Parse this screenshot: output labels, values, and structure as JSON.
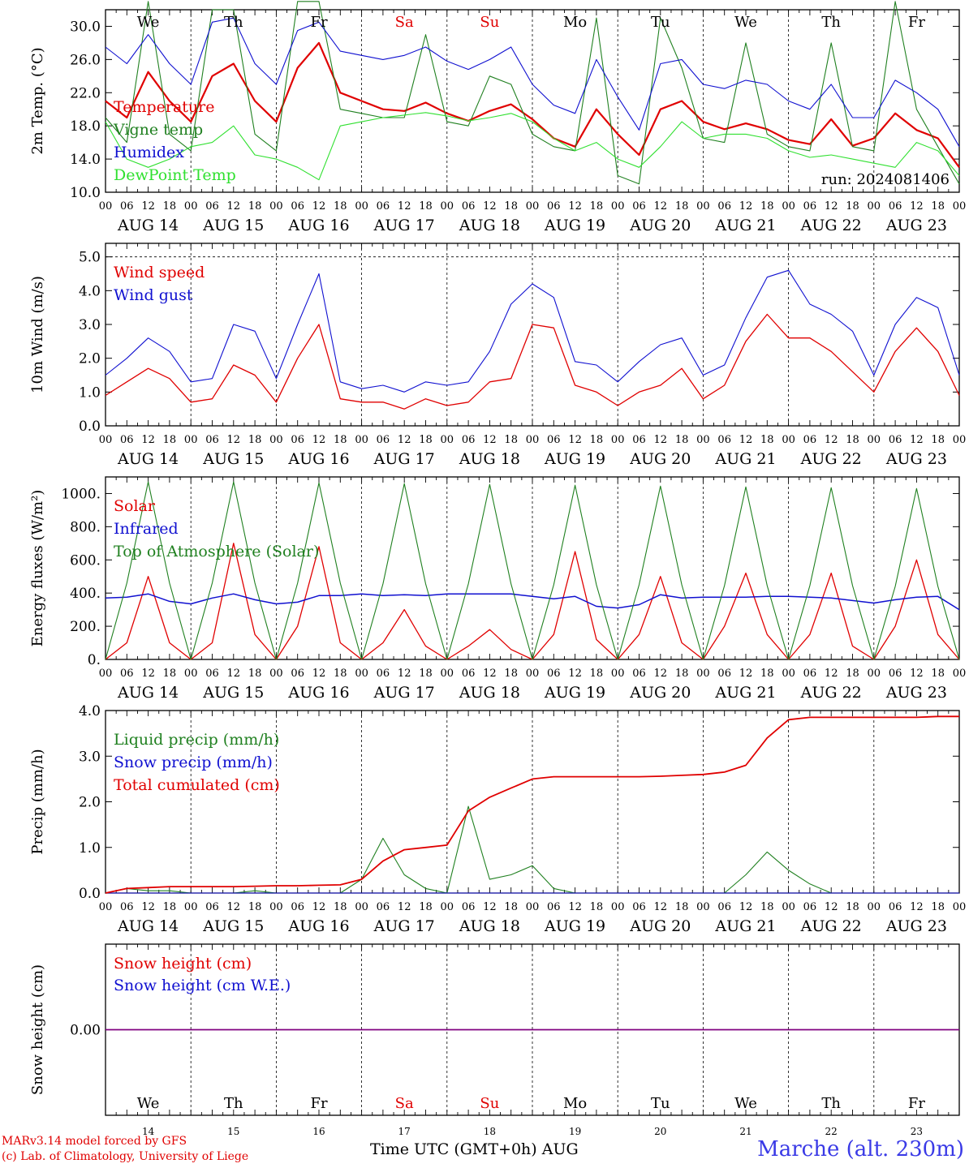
{
  "footer": {
    "model": "MARv3.14 model forced by GFS",
    "credit": "(c) Lab. of Climatology, University of Liege",
    "time_axis": "Time UTC (GMT+0h) AUG",
    "station": "Marche (alt. 230m)"
  },
  "colors": {
    "red": "#e00000",
    "dark_green": "#208020",
    "blue": "#1010d0",
    "light_green": "#30e030",
    "purple": "#800080",
    "weekend_red": "#e00000"
  },
  "days": {
    "weekdays": [
      "We",
      "Th",
      "Fr",
      "Sa",
      "Su",
      "Mo",
      "Tu",
      "We",
      "Th",
      "Fr"
    ],
    "weekend": [
      false,
      false,
      false,
      true,
      true,
      false,
      false,
      false,
      false,
      false
    ],
    "dates": [
      "AUG 14",
      "AUG 15",
      "AUG 16",
      "AUG 17",
      "AUG 18",
      "AUG 19",
      "AUG 20",
      "AUG 21",
      "AUG 22",
      "AUG 23"
    ],
    "day_numbers": [
      "14",
      "15",
      "16",
      "17",
      "18",
      "19",
      "20",
      "21",
      "22",
      "23"
    ],
    "hour_ticks": [
      "00",
      "06",
      "12",
      "18"
    ],
    "last_tick": "00"
  },
  "chart_data": [
    {
      "id": "temp",
      "type": "line",
      "ylabel": "2m Temp. (°C)",
      "ylim": [
        10,
        32
      ],
      "yticks": [
        10,
        14,
        18,
        22,
        26,
        30
      ],
      "ytick_labels": [
        "10.0",
        "14.0",
        "18.0",
        "22.0",
        "26.0",
        "30.0"
      ],
      "annotation": "run: 2024081406",
      "x_hours": [
        0,
        6,
        12,
        18,
        24,
        30,
        36,
        42,
        48,
        54,
        60,
        66,
        72,
        78,
        84,
        90,
        96,
        102,
        108,
        114,
        120,
        126,
        132,
        138,
        144,
        150,
        156,
        162,
        168,
        174,
        180,
        186,
        192,
        198,
        204,
        210,
        216,
        222,
        228,
        234,
        240
      ],
      "series": [
        {
          "name": "Temperature",
          "color": "#e00000",
          "width": 2.2,
          "values": [
            21,
            19,
            24.5,
            21,
            18.5,
            24,
            25.5,
            21,
            18.5,
            25,
            28,
            22,
            21,
            20,
            19.8,
            20.8,
            19.5,
            18.6,
            19.8,
            20.6,
            18.8,
            16.5,
            15.5,
            20,
            17,
            14.5,
            20,
            21,
            18.5,
            17.6,
            18.3,
            17.6,
            16.3,
            15.8,
            18.8,
            15.6,
            16.5,
            19.5,
            17.5,
            16.5,
            13
          ]
        },
        {
          "name": "Vigne temp",
          "color": "#208020",
          "width": 1.1,
          "values": [
            19,
            16,
            33,
            17,
            15,
            32,
            32,
            17,
            15,
            33,
            33,
            20,
            19.5,
            19,
            19,
            29,
            18.5,
            18,
            24,
            23,
            17,
            15.5,
            15,
            31,
            12,
            11,
            31,
            25,
            16.5,
            16,
            28,
            17,
            15.5,
            15,
            28,
            15.5,
            15,
            33,
            20,
            15.5,
            11
          ]
        },
        {
          "name": "Humidex",
          "color": "#1010d0",
          "width": 1.1,
          "values": [
            27.5,
            25.5,
            29,
            25.5,
            23,
            30.5,
            31,
            25.5,
            23,
            29.5,
            30.5,
            27,
            26.5,
            26,
            26.5,
            27.5,
            25.8,
            24.8,
            26,
            27.5,
            23,
            20.5,
            19.5,
            26,
            21.5,
            17.5,
            25.5,
            26,
            23,
            22.5,
            23.5,
            23,
            21,
            20,
            23,
            19,
            19,
            23.5,
            22,
            20,
            15.5
          ]
        },
        {
          "name": "DewPoint Temp",
          "color": "#30e030",
          "width": 1.1,
          "values": [
            18.5,
            14,
            13,
            14,
            15.5,
            16,
            18,
            14.5,
            14,
            13,
            11.5,
            18,
            18.5,
            19,
            19.3,
            19.6,
            19.2,
            18.6,
            19,
            19.5,
            18.5,
            16.5,
            15,
            16,
            14,
            13,
            15.5,
            18.5,
            16.5,
            17,
            17,
            16.5,
            15,
            14.2,
            14.5,
            14,
            13.5,
            13,
            16,
            15,
            12
          ]
        }
      ]
    },
    {
      "id": "wind",
      "type": "line",
      "ylabel": "10m Wind (m/s)",
      "ylim": [
        0,
        5.4
      ],
      "yticks": [
        0,
        1,
        2,
        3,
        4,
        5
      ],
      "ytick_labels": [
        "0.0",
        "1.0",
        "2.0",
        "3.0",
        "4.0",
        "5.0"
      ],
      "x_hours": [
        0,
        6,
        12,
        18,
        24,
        30,
        36,
        42,
        48,
        54,
        60,
        66,
        72,
        78,
        84,
        90,
        96,
        102,
        108,
        114,
        120,
        126,
        132,
        138,
        144,
        150,
        156,
        162,
        168,
        174,
        180,
        186,
        192,
        198,
        204,
        210,
        216,
        222,
        228,
        234,
        240
      ],
      "series": [
        {
          "name": "Wind speed",
          "color": "#e00000",
          "width": 1.3,
          "values": [
            0.9,
            1.3,
            1.7,
            1.4,
            0.7,
            0.8,
            1.8,
            1.5,
            0.7,
            2,
            3,
            0.8,
            0.7,
            0.7,
            0.5,
            0.8,
            0.6,
            0.7,
            1.3,
            1.4,
            3,
            2.9,
            1.2,
            1,
            0.6,
            1,
            1.2,
            1.7,
            0.8,
            1.2,
            2.5,
            3.3,
            2.6,
            2.6,
            2.2,
            1.6,
            1,
            2.2,
            2.9,
            2.2,
            0.9
          ]
        },
        {
          "name": "Wind gust",
          "color": "#1010d0",
          "width": 1.1,
          "values": [
            1.5,
            2,
            2.6,
            2.2,
            1.3,
            1.4,
            3,
            2.8,
            1.4,
            3,
            4.5,
            1.3,
            1.1,
            1.2,
            1,
            1.3,
            1.2,
            1.3,
            2.2,
            3.6,
            4.2,
            3.8,
            1.9,
            1.8,
            1.3,
            1.9,
            2.4,
            2.6,
            1.5,
            1.8,
            3.2,
            4.4,
            4.6,
            3.6,
            3.3,
            2.8,
            1.5,
            3,
            3.8,
            3.5,
            1.5
          ]
        }
      ]
    },
    {
      "id": "energy",
      "type": "line",
      "ylabel": "Energy fluxes (W/m²)",
      "ylim": [
        0,
        1100
      ],
      "yticks": [
        0,
        200,
        400,
        600,
        800,
        1000
      ],
      "ytick_labels": [
        "0.",
        "200.",
        "400.",
        "600.",
        "800.",
        "1000."
      ],
      "x_hours": [
        0,
        6,
        12,
        18,
        24,
        30,
        36,
        42,
        48,
        54,
        60,
        66,
        72,
        78,
        84,
        90,
        96,
        102,
        108,
        114,
        120,
        126,
        132,
        138,
        144,
        150,
        156,
        162,
        168,
        174,
        180,
        186,
        192,
        198,
        204,
        210,
        216,
        222,
        228,
        234,
        240
      ],
      "series": [
        {
          "name": "Solar",
          "color": "#e00000",
          "width": 1.3,
          "values": [
            0,
            100,
            500,
            100,
            0,
            100,
            700,
            150,
            0,
            200,
            680,
            100,
            0,
            100,
            300,
            80,
            0,
            80,
            180,
            60,
            0,
            150,
            650,
            120,
            0,
            150,
            500,
            100,
            0,
            200,
            520,
            150,
            0,
            150,
            520,
            80,
            0,
            200,
            600,
            150,
            0
          ]
        },
        {
          "name": "Infrared",
          "color": "#1010d0",
          "width": 1.5,
          "values": [
            370,
            375,
            395,
            350,
            335,
            370,
            395,
            360,
            335,
            345,
            385,
            385,
            395,
            385,
            390,
            385,
            395,
            395,
            395,
            395,
            380,
            365,
            380,
            320,
            310,
            330,
            390,
            370,
            375,
            375,
            375,
            380,
            380,
            375,
            370,
            355,
            340,
            360,
            375,
            380,
            300
          ]
        },
        {
          "name": "Top of Atmosphere (Solar)",
          "color": "#208020",
          "width": 1.1,
          "values": [
            0,
            460,
            1070,
            460,
            0,
            460,
            1070,
            460,
            0,
            460,
            1065,
            460,
            0,
            455,
            1060,
            455,
            0,
            455,
            1055,
            455,
            0,
            450,
            1050,
            450,
            0,
            450,
            1045,
            450,
            0,
            445,
            1040,
            445,
            0,
            445,
            1035,
            445,
            0,
            440,
            1030,
            440,
            0
          ]
        }
      ]
    },
    {
      "id": "precip",
      "type": "line",
      "ylabel": "Precip (mm/h)",
      "ylim": [
        0,
        4
      ],
      "yticks": [
        0,
        1,
        2,
        3,
        4
      ],
      "ytick_labels": [
        "0.0",
        "1.0",
        "2.0",
        "3.0",
        "4.0"
      ],
      "x_hours": [
        0,
        6,
        12,
        18,
        24,
        30,
        36,
        42,
        48,
        54,
        60,
        66,
        72,
        78,
        84,
        90,
        96,
        102,
        108,
        114,
        120,
        126,
        132,
        138,
        144,
        150,
        156,
        162,
        168,
        174,
        180,
        186,
        192,
        198,
        204,
        210,
        216,
        222,
        228,
        234,
        240
      ],
      "series": [
        {
          "name": "Liquid precip (mm/h)",
          "color": "#208020",
          "width": 1.1,
          "values": [
            0,
            0.1,
            0.05,
            0.05,
            0,
            0,
            0,
            0.05,
            0,
            0,
            0,
            0,
            0.3,
            1.2,
            0.4,
            0.1,
            0,
            1.9,
            0.3,
            0.4,
            0.6,
            0.1,
            0,
            0,
            0,
            0,
            0,
            0,
            0,
            0,
            0.4,
            0.9,
            0.5,
            0.2,
            0,
            0,
            0,
            0,
            0,
            0,
            0
          ]
        },
        {
          "name": "Snow precip (mm/h)",
          "color": "#1010d0",
          "width": 1.1,
          "values": [
            0,
            0,
            0,
            0,
            0,
            0,
            0,
            0,
            0,
            0,
            0,
            0,
            0,
            0,
            0,
            0,
            0,
            0,
            0,
            0,
            0,
            0,
            0,
            0,
            0,
            0,
            0,
            0,
            0,
            0,
            0,
            0,
            0,
            0,
            0,
            0,
            0,
            0,
            0,
            0,
            0
          ]
        },
        {
          "name": "Total cumulated (cm)",
          "color": "#e00000",
          "width": 1.8,
          "values": [
            0,
            0.1,
            0.12,
            0.14,
            0.14,
            0.14,
            0.14,
            0.15,
            0.16,
            0.16,
            0.17,
            0.18,
            0.3,
            0.7,
            0.95,
            1.0,
            1.05,
            1.8,
            2.1,
            2.3,
            2.5,
            2.55,
            2.55,
            2.55,
            2.55,
            2.55,
            2.56,
            2.58,
            2.6,
            2.65,
            2.8,
            3.4,
            3.8,
            3.85,
            3.85,
            3.85,
            3.85,
            3.85,
            3.85,
            3.87,
            3.87
          ]
        }
      ]
    },
    {
      "id": "snow",
      "type": "line",
      "ylabel": "Snow height (cm)",
      "ylim": [
        -1,
        1
      ],
      "yticks": [
        0
      ],
      "ytick_labels": [
        "0.00"
      ],
      "x_hours": [
        0,
        240
      ],
      "series": [
        {
          "name": "Snow height (cm)",
          "color": "#e00000",
          "width": 1.1,
          "values": [
            0,
            0
          ]
        },
        {
          "name": "Snow height (cm W.E.)",
          "color": "#1010d0",
          "width": 1.1,
          "values": [
            0,
            0
          ]
        },
        {
          "name": "",
          "color": "#800080",
          "width": 1.8,
          "values": [
            0,
            0
          ]
        }
      ]
    }
  ]
}
